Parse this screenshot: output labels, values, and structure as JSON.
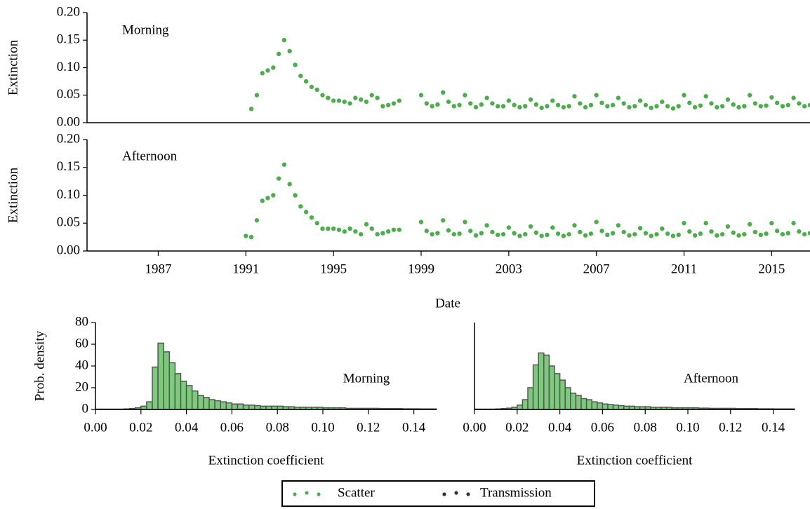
{
  "chart_data": [
    {
      "type": "scatter",
      "annotation": "Morning",
      "ylabel": "Extinction",
      "color": "#2ca02c",
      "xlim": [
        1983.75,
        2016.75
      ],
      "ylim": [
        0,
        0.2
      ],
      "yticks": [
        {
          "value": 0,
          "label": "0.00"
        },
        0.05,
        {
          "value": 0.1,
          "label": "0.10"
        },
        0.15,
        {
          "value": 0.2,
          "label": "0.20"
        }
      ],
      "x": [
        1991.25,
        1991.5,
        1991.75,
        1992,
        1992.25,
        1992.5,
        1992.75,
        1993,
        1993.25,
        1993.5,
        1993.75,
        1994,
        1994.25,
        1994.5,
        1994.75,
        1995,
        1995.25,
        1995.5,
        1995.75,
        1996,
        1996.25,
        1996.5,
        1996.75,
        1997,
        1997.25,
        1997.5,
        1997.75,
        1998,
        1999,
        1999.25,
        1999.5,
        1999.75,
        2000,
        2000.25,
        2000.5,
        2000.75,
        2001,
        2001.25,
        2001.5,
        2001.75,
        2002,
        2002.25,
        2002.5,
        2002.75,
        2003,
        2003.25,
        2003.5,
        2003.75,
        2004,
        2004.25,
        2004.5,
        2004.75,
        2005,
        2005.25,
        2005.5,
        2005.75,
        2006,
        2006.25,
        2006.5,
        2006.75,
        2007,
        2007.25,
        2007.5,
        2007.75,
        2008,
        2008.25,
        2008.5,
        2008.75,
        2009,
        2009.25,
        2009.5,
        2009.75,
        2010,
        2010.25,
        2010.5,
        2010.75,
        2011,
        2011.25,
        2011.5,
        2011.75,
        2012,
        2012.25,
        2012.5,
        2012.75,
        2013,
        2013.25,
        2013.5,
        2013.75,
        2014,
        2014.25,
        2014.5,
        2014.75,
        2015,
        2015.25,
        2015.5,
        2015.75,
        2016,
        2016.25,
        2016.5,
        2016.75
      ],
      "values": [
        0.025,
        0.05,
        0.09,
        0.095,
        0.1,
        0.125,
        0.15,
        0.13,
        0.105,
        0.085,
        0.075,
        0.065,
        0.06,
        0.05,
        0.045,
        0.04,
        0.04,
        0.038,
        0.035,
        0.045,
        0.042,
        0.038,
        0.05,
        0.045,
        0.03,
        0.032,
        0.035,
        0.04,
        0.05,
        0.035,
        0.03,
        0.033,
        0.055,
        0.038,
        0.03,
        0.032,
        0.05,
        0.035,
        0.028,
        0.033,
        0.045,
        0.035,
        0.03,
        0.03,
        0.04,
        0.032,
        0.028,
        0.03,
        0.042,
        0.033,
        0.027,
        0.03,
        0.04,
        0.032,
        0.028,
        0.03,
        0.048,
        0.035,
        0.028,
        0.032,
        0.05,
        0.036,
        0.03,
        0.032,
        0.045,
        0.035,
        0.028,
        0.03,
        0.04,
        0.032,
        0.027,
        0.03,
        0.038,
        0.03,
        0.026,
        0.03,
        0.05,
        0.036,
        0.028,
        0.031,
        0.048,
        0.035,
        0.028,
        0.03,
        0.042,
        0.033,
        0.028,
        0.03,
        0.05,
        0.035,
        0.03,
        0.031,
        0.046,
        0.036,
        0.03,
        0.032,
        0.045,
        0.035,
        0.03,
        0.032
      ]
    },
    {
      "type": "scatter",
      "annotation": "Afternoon",
      "ylabel": "Extinction",
      "xlabel": "Date",
      "color": "#2ca02c",
      "xlim": [
        1983.75,
        2016.75
      ],
      "ylim": [
        0,
        0.2
      ],
      "yticks": [
        {
          "value": 0,
          "label": "0.00"
        },
        0.05,
        {
          "value": 0.1,
          "label": "0.10"
        },
        0.15,
        {
          "value": 0.2,
          "label": "0.20"
        }
      ],
      "xticks": [
        1987,
        1991,
        1995,
        1999,
        2003,
        2007,
        2011,
        2015
      ],
      "x": [
        1991,
        1991.25,
        1991.5,
        1991.75,
        1992,
        1992.25,
        1992.5,
        1992.75,
        1993,
        1993.25,
        1993.5,
        1993.75,
        1994,
        1994.25,
        1994.5,
        1994.75,
        1995,
        1995.25,
        1995.5,
        1995.75,
        1996,
        1996.25,
        1996.5,
        1996.75,
        1997,
        1997.25,
        1997.5,
        1997.75,
        1998,
        1999,
        1999.25,
        1999.5,
        1999.75,
        2000,
        2000.25,
        2000.5,
        2000.75,
        2001,
        2001.25,
        2001.5,
        2001.75,
        2002,
        2002.25,
        2002.5,
        2002.75,
        2003,
        2003.25,
        2003.5,
        2003.75,
        2004,
        2004.25,
        2004.5,
        2004.75,
        2005,
        2005.25,
        2005.5,
        2005.75,
        2006,
        2006.25,
        2006.5,
        2006.75,
        2007,
        2007.25,
        2007.5,
        2007.75,
        2008,
        2008.25,
        2008.5,
        2008.75,
        2009,
        2009.25,
        2009.5,
        2009.75,
        2010,
        2010.25,
        2010.5,
        2010.75,
        2011,
        2011.25,
        2011.5,
        2011.75,
        2012,
        2012.25,
        2012.5,
        2012.75,
        2013,
        2013.25,
        2013.5,
        2013.75,
        2014,
        2014.25,
        2014.5,
        2014.75,
        2015,
        2015.25,
        2015.5,
        2015.75,
        2016,
        2016.25,
        2016.5,
        2016.75
      ],
      "values": [
        0.027,
        0.025,
        0.055,
        0.09,
        0.095,
        0.1,
        0.13,
        0.155,
        0.12,
        0.1,
        0.08,
        0.07,
        0.06,
        0.05,
        0.04,
        0.04,
        0.04,
        0.038,
        0.035,
        0.04,
        0.035,
        0.03,
        0.048,
        0.04,
        0.03,
        0.032,
        0.035,
        0.038,
        0.038,
        0.052,
        0.036,
        0.03,
        0.032,
        0.055,
        0.037,
        0.03,
        0.031,
        0.052,
        0.036,
        0.028,
        0.032,
        0.046,
        0.034,
        0.029,
        0.03,
        0.042,
        0.032,
        0.027,
        0.03,
        0.044,
        0.033,
        0.027,
        0.029,
        0.042,
        0.031,
        0.027,
        0.03,
        0.046,
        0.034,
        0.028,
        0.031,
        0.052,
        0.036,
        0.029,
        0.032,
        0.046,
        0.034,
        0.028,
        0.03,
        0.041,
        0.032,
        0.027,
        0.03,
        0.04,
        0.031,
        0.027,
        0.029,
        0.05,
        0.035,
        0.028,
        0.031,
        0.05,
        0.035,
        0.028,
        0.03,
        0.044,
        0.033,
        0.028,
        0.03,
        0.048,
        0.034,
        0.029,
        0.031,
        0.05,
        0.036,
        0.03,
        0.032,
        0.05,
        0.035,
        0.03,
        0.032
      ]
    },
    {
      "type": "histogram",
      "annotation": "Morning",
      "ylabel": "Prob. density",
      "xlabel": "Extinction coefficient",
      "color": "#7ccb7c",
      "edgecolor": "#555555",
      "xlim": [
        0,
        0.15
      ],
      "ylim": [
        0,
        80
      ],
      "yticks": [
        0,
        20,
        40,
        60,
        80
      ],
      "xticks": [
        {
          "value": 0,
          "label": "0.00"
        },
        0.02,
        0.04,
        0.06,
        0.08,
        {
          "value": 0.1,
          "label": "0.10"
        },
        0.12,
        0.14
      ],
      "bins": [
        0,
        0.0025,
        0.005,
        0.0075,
        0.01,
        0.0125,
        0.015,
        0.0175,
        0.02,
        0.0225,
        0.025,
        0.0275,
        0.03,
        0.0325,
        0.035,
        0.0375,
        0.04,
        0.0425,
        0.045,
        0.0475,
        0.05,
        0.0525,
        0.055,
        0.0575,
        0.06,
        0.0625,
        0.065,
        0.0675,
        0.07,
        0.0725,
        0.075,
        0.0775,
        0.08,
        0.0825,
        0.085,
        0.0875,
        0.09,
        0.0925,
        0.095,
        0.0975,
        0.1,
        0.1025,
        0.105,
        0.1075,
        0.11,
        0.1125,
        0.115,
        0.1175,
        0.12,
        0.1225,
        0.125,
        0.1275,
        0.13,
        0.1325,
        0.135,
        0.1375,
        0.14,
        0.1425,
        0.145,
        0.1475,
        0.15
      ],
      "values": [
        0.3,
        0.3,
        0.3,
        0.3,
        0.3,
        0.5,
        0.8,
        1.5,
        3,
        7,
        39,
        61,
        53,
        43,
        33,
        26,
        22,
        17,
        13,
        11,
        9,
        8,
        7,
        6,
        5,
        5,
        4,
        4,
        3.5,
        3,
        3,
        3,
        3,
        2.5,
        2.5,
        2,
        2,
        2,
        2,
        2,
        1.5,
        1.5,
        1.5,
        1.5,
        1,
        1,
        1,
        1,
        1,
        1,
        0.8,
        0.8,
        0.8,
        0.8,
        0.6,
        0.6,
        0.6,
        0.5,
        0.5,
        0.5
      ]
    },
    {
      "type": "histogram",
      "annotation": "Afternoon",
      "xlabel": "Extinction coefficient",
      "color": "#7ccb7c",
      "edgecolor": "#555555",
      "xlim": [
        0,
        0.15
      ],
      "ylim": [
        0,
        80
      ],
      "xticks": [
        {
          "value": 0,
          "label": "0.00"
        },
        0.02,
        0.04,
        0.06,
        0.08,
        {
          "value": 0.1,
          "label": "0.10"
        },
        0.12,
        0.14
      ],
      "bins": [
        0,
        0.0025,
        0.005,
        0.0075,
        0.01,
        0.0125,
        0.015,
        0.0175,
        0.02,
        0.0225,
        0.025,
        0.0275,
        0.03,
        0.0325,
        0.035,
        0.0375,
        0.04,
        0.0425,
        0.045,
        0.0475,
        0.05,
        0.0525,
        0.055,
        0.0575,
        0.06,
        0.0625,
        0.065,
        0.0675,
        0.07,
        0.0725,
        0.075,
        0.0775,
        0.08,
        0.0825,
        0.085,
        0.0875,
        0.09,
        0.0925,
        0.095,
        0.0975,
        0.1,
        0.1025,
        0.105,
        0.1075,
        0.11,
        0.1125,
        0.115,
        0.1175,
        0.12,
        0.1225,
        0.125,
        0.1275,
        0.13,
        0.1325,
        0.135,
        0.1375,
        0.14,
        0.1425,
        0.145,
        0.1475,
        0.15
      ],
      "values": [
        0.3,
        0.3,
        0.3,
        0.3,
        0.5,
        0.8,
        1.2,
        2,
        4,
        9,
        20,
        41,
        52,
        50,
        40,
        33,
        27,
        20,
        15,
        13,
        10,
        9,
        7,
        6,
        5,
        4.5,
        4,
        3.5,
        3,
        3,
        2.5,
        2.5,
        2.5,
        2,
        2,
        2,
        2,
        1.5,
        1.5,
        1.5,
        1.5,
        1.5,
        1.2,
        1.2,
        1,
        1,
        1,
        1,
        1,
        0.8,
        0.8,
        0.8,
        0.8,
        0.6,
        0.6,
        0.6,
        0.5,
        0.5,
        0.5,
        0.5
      ]
    }
  ],
  "legend": [
    {
      "name": "Scatter",
      "color": "#4caf50"
    },
    {
      "name": "Transmission",
      "color": "#333333"
    }
  ]
}
